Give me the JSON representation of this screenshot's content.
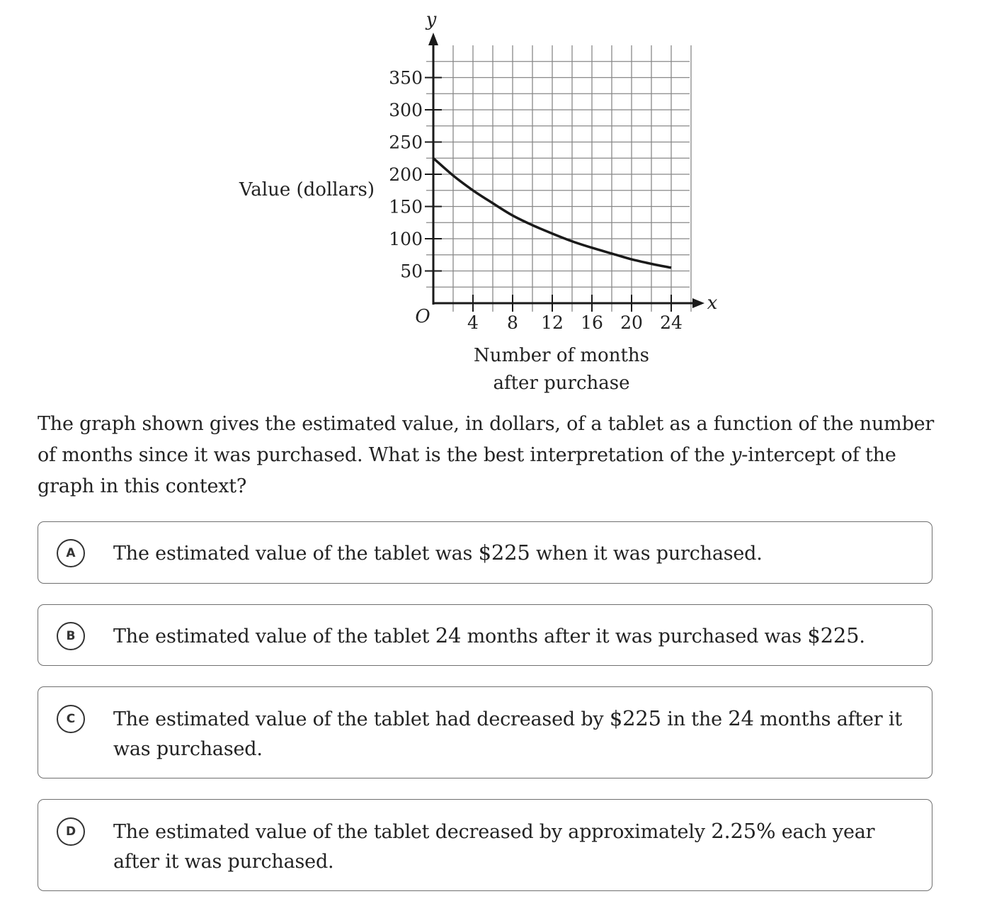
{
  "chart_data": {
    "type": "line",
    "series": [
      {
        "x": [
          0,
          2,
          4,
          6,
          8,
          10,
          12,
          14,
          16,
          18,
          20,
          22,
          24
        ],
        "y": [
          225,
          198,
          175,
          155,
          136,
          121,
          108,
          96,
          86,
          77,
          68,
          61,
          55
        ]
      }
    ],
    "ylabel": "Value (dollars)",
    "xlabel": [
      "Number of months",
      "after purchase"
    ],
    "y_axis_letter": "y",
    "x_axis_letter": "x",
    "origin_label": "O",
    "xlim": [
      0,
      26
    ],
    "ylim": [
      0,
      350
    ],
    "x_ticks": [
      4,
      8,
      12,
      16,
      20,
      24
    ],
    "y_ticks": [
      50,
      100,
      150,
      200,
      250,
      300,
      350
    ],
    "grid": true
  },
  "question": {
    "part1": "The graph shown gives the estimated value, in dollars, of a tablet as a function of the number of months since it was purchased. What is the best interpretation of the ",
    "italic": "y",
    "part2": "-intercept of the graph in this context?"
  },
  "choices": [
    {
      "letter": "A",
      "text": [
        "The estimated value of the tablet was ",
        "$225",
        " when it was purchased."
      ]
    },
    {
      "letter": "B",
      "text": [
        "The estimated value of the tablet ",
        "24",
        " months after it was purchased was ",
        "$225",
        "."
      ]
    },
    {
      "letter": "C",
      "text": [
        "The estimated value of the tablet had decreased by ",
        "$225",
        " in the ",
        "24",
        " months after it was purchased."
      ]
    },
    {
      "letter": "D",
      "text": [
        "The estimated value of the tablet decreased by approximately ",
        "2.25%",
        " each year after it was purchased."
      ]
    }
  ]
}
